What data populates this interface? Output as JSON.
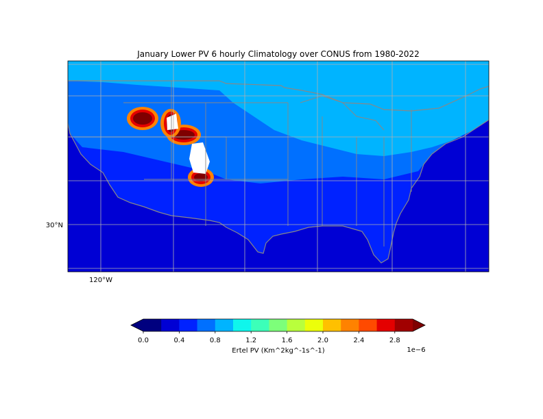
{
  "chart_data": {
    "type": "heatmap",
    "title": "January Lower PV 6 hourly Climatology over CONUS from 1980-2022",
    "map": {
      "region": "CONUS",
      "lat_ticks": [
        {
          "value": 30,
          "label": "30°N"
        }
      ],
      "lon_ticks": [
        {
          "value": -120,
          "label": "120°W"
        }
      ],
      "gridlines": true,
      "borders": [
        "coastlines",
        "states",
        "countries"
      ],
      "masked_color": "#ffffff"
    },
    "colorbar": {
      "label": "Ertel PV (Km^2kg^-1s^-1)",
      "offset_label": "1e−6",
      "orientation": "horizontal",
      "placement": "bottom",
      "extend": "both",
      "tick_values": [
        0.0,
        0.4,
        0.8,
        1.2,
        1.6,
        2.0,
        2.4,
        2.8
      ],
      "tick_labels": [
        "0.0",
        "0.4",
        "0.8",
        "1.2",
        "1.6",
        "2.0",
        "2.4",
        "2.8"
      ],
      "levels": [
        0.0,
        0.2,
        0.4,
        0.6,
        0.8,
        1.0,
        1.2,
        1.4,
        1.6,
        1.8,
        2.0,
        2.2,
        2.4,
        2.6,
        2.8,
        3.0
      ],
      "colors": [
        "#00007f",
        "#0000d4",
        "#0022ff",
        "#0070ff",
        "#00b4ff",
        "#0ff6ec",
        "#3cffb9",
        "#7dff7a",
        "#b9ff3c",
        "#ecff0a",
        "#ffc000",
        "#ff8200",
        "#ff4a00",
        "#e40000",
        "#a10000"
      ],
      "under_color": "#00007f",
      "over_color": "#7f0000"
    },
    "values_approx_1e-6": {
      "northeast_and_great_lakes": 0.9,
      "plains_and_midwest": 0.7,
      "southeast_and_south": 0.5,
      "gulf_and_ocean": 0.3,
      "rocky_mountain_maxima": 3.0
    }
  }
}
